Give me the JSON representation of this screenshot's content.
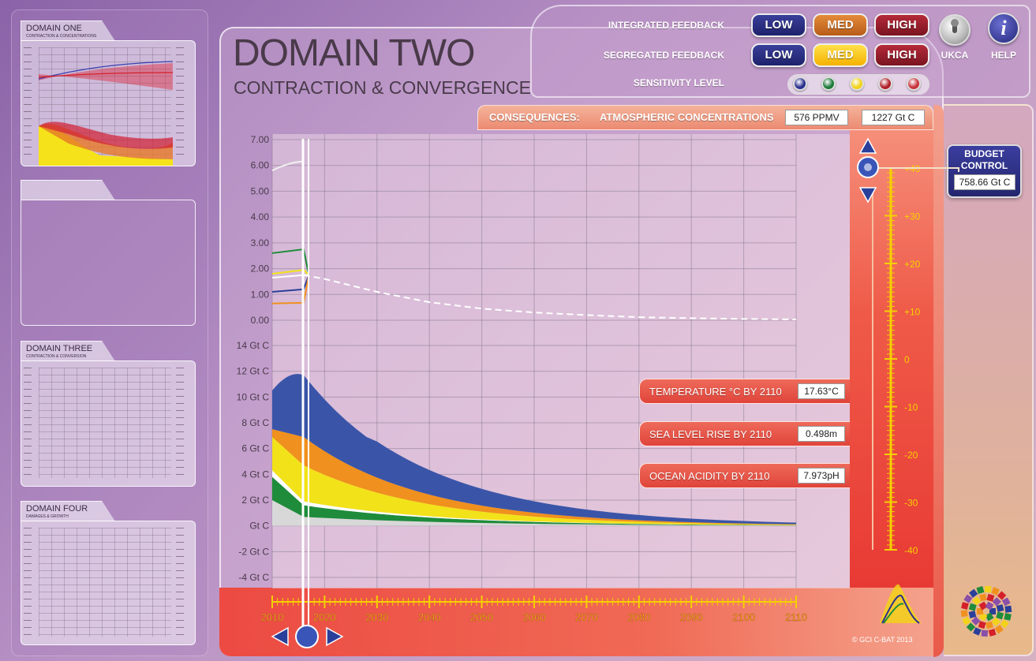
{
  "sidebar": {
    "domain_one": {
      "title": "DOMAIN ONE",
      "subtitle": "CONTRACTION & CONCENTRATIONS"
    },
    "domain_three": {
      "title": "DOMAIN THREE",
      "subtitle": "CONTRACTION & CONVERSION"
    },
    "domain_four": {
      "title": "DOMAIN FOUR",
      "subtitle": "DAMAGES & GROWTH"
    }
  },
  "main": {
    "title": "DOMAIN TWO",
    "subtitle": "CONTRACTION & CONVERGENCE"
  },
  "controls": {
    "integrated_label": "INTEGRATED FEEDBACK",
    "segregated_label": "SEGREGATED FEEDBACK",
    "sensitivity_label": "SENSITIVITY LEVEL",
    "low": "LOW",
    "med": "MED",
    "high": "HIGH",
    "ukca": "UKCA",
    "help": "HELP",
    "help_glyph": "i",
    "segregated_active": "MED",
    "sensitivity_colors": [
      "#2a2f8f",
      "#1e7a3a",
      "#f2d21a",
      "#b0202a",
      "#c8323a"
    ]
  },
  "consequences": {
    "label": "CONSEQUENCES:",
    "atm_label": "ATMOSPHERIC CONCENTRATIONS",
    "ppmv": "576 PPMV",
    "gtc": "1227 Gt C",
    "temperature_label": "TEMPERATURE  °C BY 2110",
    "temperature_value": "17.63°C",
    "sea_level_label": "SEA LEVEL RISE  BY 2110",
    "sea_level_value": "0.498m",
    "acidity_label": "OCEAN ACIDITY  BY 2110",
    "acidity_value": "7.973pH"
  },
  "budget": {
    "title_line1": "BUDGET",
    "title_line2": "CONTROL",
    "value": "758.66 Gt C"
  },
  "copyright": "©  GCI C-BAT 2013",
  "chart_data": {
    "type": "area",
    "upper_axis": {
      "tick_labels": [
        "7.00",
        "6.00",
        "5.00",
        "4.00",
        "3.00",
        "2.00",
        "1.00",
        "0.00"
      ],
      "ylim": [
        0,
        7
      ]
    },
    "lower_axis": {
      "tick_labels": [
        "14 Gt C",
        "12 Gt C",
        "10 Gt C",
        "8 Gt C",
        "6 Gt C",
        "4 Gt C",
        "2 Gt C",
        "Gt C",
        "-2 Gt C",
        "-4 Gt C"
      ],
      "ylim": [
        -4,
        14
      ]
    },
    "x_tick_labels": [
      "2010",
      "2020",
      "2030",
      "2040",
      "2050",
      "2060",
      "2070",
      "2080",
      "2090",
      "2100",
      "2110"
    ],
    "xlim": [
      2010,
      2110
    ],
    "dashed_series": {
      "x": [
        2016,
        2020,
        2030,
        2040,
        2050,
        2060,
        2070,
        2080,
        2090,
        2100,
        2110
      ],
      "y": [
        1.75,
        1.6,
        1.1,
        0.7,
        0.45,
        0.3,
        0.2,
        0.12,
        0.08,
        0.05,
        0.03
      ]
    },
    "stacked_series": [
      {
        "color": "#d8d8d8",
        "values_start": 2.0,
        "values_2016": 0.7
      },
      {
        "color": "#1e8c3a",
        "values_start": 1.8,
        "values_2016": 0.9
      },
      {
        "color": "#ffffff",
        "values_start": 0.5,
        "values_2016": 0.3
      },
      {
        "color": "#f2e21a",
        "values_start": 2.6,
        "values_2016": 2.8
      },
      {
        "color": "#f0901e",
        "values_start": 0.6,
        "values_2016": 2.2
      },
      {
        "color": "#3a55a8",
        "values_start": 3.0,
        "values_2016": 4.8
      }
    ],
    "right_scale_labels": [
      "+40",
      "+30",
      "+20",
      "+10",
      "0",
      "-10",
      "-20",
      "-30",
      "-40"
    ]
  }
}
